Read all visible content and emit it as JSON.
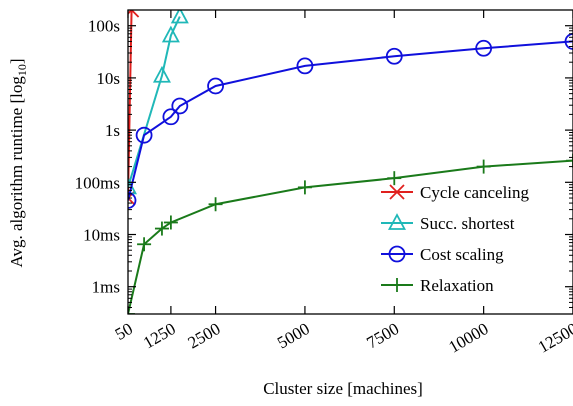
{
  "chart_data": {
    "type": "line",
    "title": "",
    "xlabel": "Cluster size [machines]",
    "ylabel": "Avg. algorithm runtime [log",
    "ylabel_sub": "10",
    "ylabel_close": "]",
    "xscale": "linear",
    "yscale": "log",
    "xlim": [
      50,
      12500
    ],
    "ylim": [
      0.0003,
      200
    ],
    "x_ticks": [
      {
        "value": 50,
        "label": "50"
      },
      {
        "value": 1250,
        "label": "1250"
      },
      {
        "value": 2500,
        "label": "2500"
      },
      {
        "value": 5000,
        "label": "5000"
      },
      {
        "value": 7500,
        "label": "7500"
      },
      {
        "value": 10000,
        "label": "10000"
      },
      {
        "value": 12500,
        "label": "12500"
      }
    ],
    "y_ticks": [
      {
        "value": 0.001,
        "label": "1ms"
      },
      {
        "value": 0.01,
        "label": "10ms"
      },
      {
        "value": 0.1,
        "label": "100ms"
      },
      {
        "value": 1,
        "label": "1s"
      },
      {
        "value": 10,
        "label": "10s"
      },
      {
        "value": 100,
        "label": "100s"
      }
    ],
    "grid": false,
    "legend_position": "right-center",
    "series": [
      {
        "name": "Cycle canceling",
        "color": "#e0201e",
        "marker": "x",
        "x": [
          50,
          150
        ],
        "y": [
          0.05,
          200
        ]
      },
      {
        "name": "Succ. shortest",
        "color": "#20b8b8",
        "marker": "triangle",
        "x": [
          50,
          1000,
          1250,
          1500
        ],
        "y": [
          0.08,
          11,
          65,
          150
        ]
      },
      {
        "name": "Cost scaling",
        "color": "#1010dc",
        "marker": "circle",
        "x": [
          50,
          500,
          1250,
          1500,
          2500,
          5000,
          7500,
          10000,
          12500
        ],
        "y": [
          0.045,
          0.8,
          1.8,
          2.9,
          7,
          17,
          26,
          37,
          50
        ]
      },
      {
        "name": "Relaxation",
        "color": "#1a7a1a",
        "marker": "plus",
        "x": [
          50,
          500,
          1000,
          1250,
          2500,
          5000,
          7500,
          10000,
          12500
        ],
        "y": [
          0.0003,
          0.0065,
          0.013,
          0.017,
          0.038,
          0.08,
          0.12,
          0.2,
          0.26
        ]
      }
    ]
  }
}
